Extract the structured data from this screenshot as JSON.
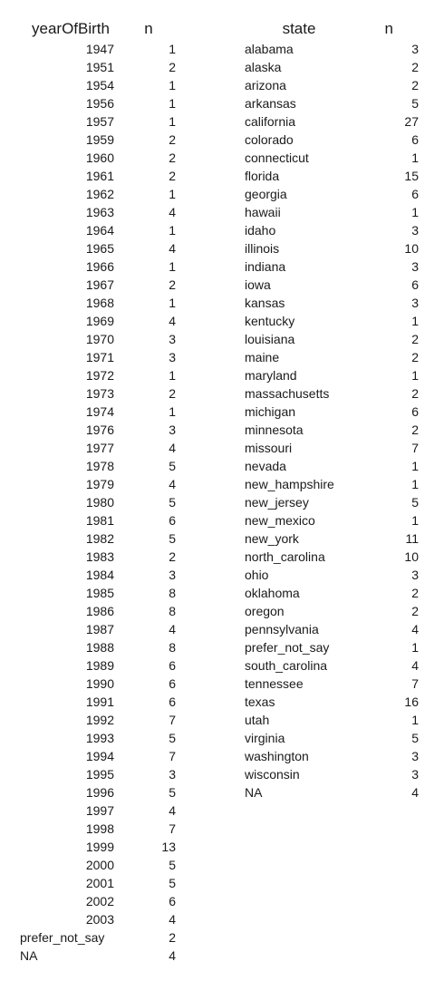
{
  "year_table": {
    "headers": [
      "yearOfBirth",
      "n"
    ],
    "rows": [
      [
        "1947",
        "1"
      ],
      [
        "1951",
        "2"
      ],
      [
        "1954",
        "1"
      ],
      [
        "1956",
        "1"
      ],
      [
        "1957",
        "1"
      ],
      [
        "1959",
        "2"
      ],
      [
        "1960",
        "2"
      ],
      [
        "1961",
        "2"
      ],
      [
        "1962",
        "1"
      ],
      [
        "1963",
        "4"
      ],
      [
        "1964",
        "1"
      ],
      [
        "1965",
        "4"
      ],
      [
        "1966",
        "1"
      ],
      [
        "1967",
        "2"
      ],
      [
        "1968",
        "1"
      ],
      [
        "1969",
        "4"
      ],
      [
        "1970",
        "3"
      ],
      [
        "1971",
        "3"
      ],
      [
        "1972",
        "1"
      ],
      [
        "1973",
        "2"
      ],
      [
        "1974",
        "1"
      ],
      [
        "1976",
        "3"
      ],
      [
        "1977",
        "4"
      ],
      [
        "1978",
        "5"
      ],
      [
        "1979",
        "4"
      ],
      [
        "1980",
        "5"
      ],
      [
        "1981",
        "6"
      ],
      [
        "1982",
        "5"
      ],
      [
        "1983",
        "2"
      ],
      [
        "1984",
        "3"
      ],
      [
        "1985",
        "8"
      ],
      [
        "1986",
        "8"
      ],
      [
        "1987",
        "4"
      ],
      [
        "1988",
        "8"
      ],
      [
        "1989",
        "6"
      ],
      [
        "1990",
        "6"
      ],
      [
        "1991",
        "6"
      ],
      [
        "1992",
        "7"
      ],
      [
        "1993",
        "5"
      ],
      [
        "1994",
        "7"
      ],
      [
        "1995",
        "3"
      ],
      [
        "1996",
        "5"
      ],
      [
        "1997",
        "4"
      ],
      [
        "1998",
        "7"
      ],
      [
        "1999",
        "13"
      ],
      [
        "2000",
        "5"
      ],
      [
        "2001",
        "5"
      ],
      [
        "2002",
        "6"
      ],
      [
        "2003",
        "4"
      ],
      [
        "prefer_not_say",
        "2"
      ],
      [
        "NA",
        "4"
      ]
    ]
  },
  "state_table": {
    "headers": [
      "state",
      "n"
    ],
    "rows": [
      [
        "alabama",
        "3"
      ],
      [
        "alaska",
        "2"
      ],
      [
        "arizona",
        "2"
      ],
      [
        "arkansas",
        "5"
      ],
      [
        "california",
        "27"
      ],
      [
        "colorado",
        "6"
      ],
      [
        "connecticut",
        "1"
      ],
      [
        "florida",
        "15"
      ],
      [
        "georgia",
        "6"
      ],
      [
        "hawaii",
        "1"
      ],
      [
        "idaho",
        "3"
      ],
      [
        "illinois",
        "10"
      ],
      [
        "indiana",
        "3"
      ],
      [
        "iowa",
        "6"
      ],
      [
        "kansas",
        "3"
      ],
      [
        "kentucky",
        "1"
      ],
      [
        "louisiana",
        "2"
      ],
      [
        "maine",
        "2"
      ],
      [
        "maryland",
        "1"
      ],
      [
        "massachusetts",
        "2"
      ],
      [
        "michigan",
        "6"
      ],
      [
        "minnesota",
        "2"
      ],
      [
        "missouri",
        "7"
      ],
      [
        "nevada",
        "1"
      ],
      [
        "new_hampshire",
        "1"
      ],
      [
        "new_jersey",
        "5"
      ],
      [
        "new_mexico",
        "1"
      ],
      [
        "new_york",
        "11"
      ],
      [
        "north_carolina",
        "10"
      ],
      [
        "ohio",
        "3"
      ],
      [
        "oklahoma",
        "2"
      ],
      [
        "oregon",
        "2"
      ],
      [
        "pennsylvania",
        "4"
      ],
      [
        "prefer_not_say",
        "1"
      ],
      [
        "south_carolina",
        "4"
      ],
      [
        "tennessee",
        "7"
      ],
      [
        "texas",
        "16"
      ],
      [
        "utah",
        "1"
      ],
      [
        "virginia",
        "5"
      ],
      [
        "washington",
        "3"
      ],
      [
        "wisconsin",
        "3"
      ],
      [
        "NA",
        "4"
      ]
    ]
  }
}
